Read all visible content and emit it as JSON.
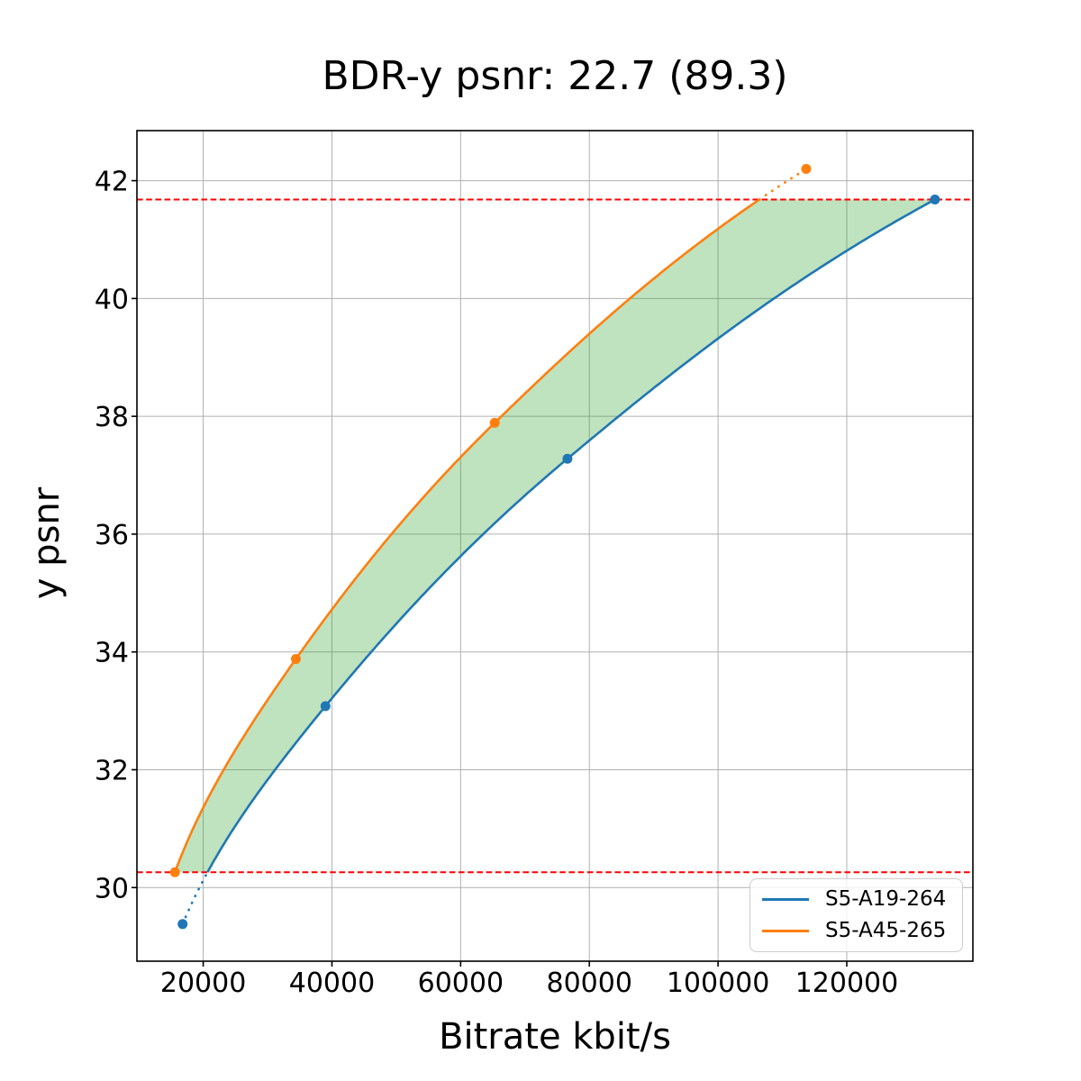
{
  "chart_data": {
    "type": "line",
    "title": "BDR-y psnr: 22.7 (89.3)",
    "xlabel": "Bitrate kbit/s",
    "ylabel": "y psnr",
    "xlim": [
      9700,
      139600
    ],
    "ylim": [
      28.75,
      42.85
    ],
    "x_ticks": [
      20000,
      40000,
      60000,
      80000,
      100000,
      120000
    ],
    "y_ticks": [
      30,
      32,
      34,
      36,
      38,
      40,
      42
    ],
    "grid": true,
    "grid_color": "#b0b0b0",
    "legend_position": "lower right",
    "bounds": {
      "lower": 30.26,
      "upper": 41.68,
      "line_color": "#ff0000",
      "line_style": "dashed"
    },
    "fill_between_color": "rgba(44,160,44,0.30)",
    "series": [
      {
        "name": "S5-A19-264",
        "color": "#1f77b4",
        "points": [
          [
            16800,
            29.38
          ],
          [
            39000,
            33.08
          ],
          [
            76600,
            37.28
          ],
          [
            133700,
            41.68
          ]
        ]
      },
      {
        "name": "S5-A45-265",
        "color": "#ff7f0e",
        "points": [
          [
            15600,
            30.26
          ],
          [
            34400,
            33.88
          ],
          [
            65300,
            37.89
          ],
          [
            113700,
            42.2
          ]
        ]
      }
    ]
  }
}
